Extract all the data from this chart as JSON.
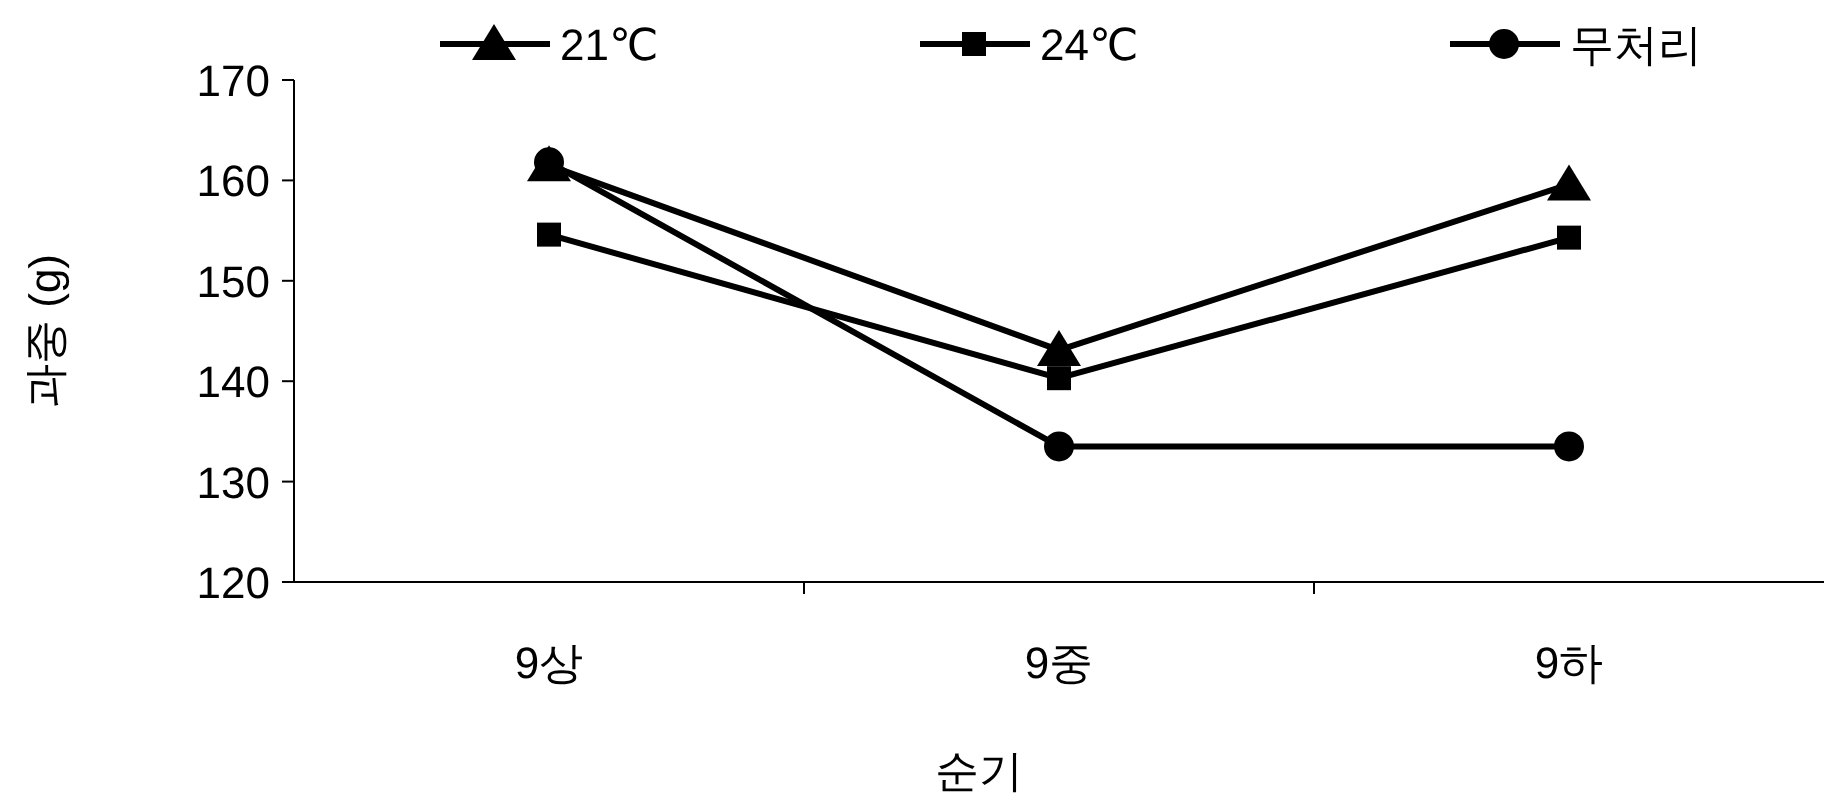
{
  "chart_data": {
    "type": "line",
    "xlabel": "순기",
    "ylabel": "과중 (g)",
    "categories": [
      "9상",
      "9중",
      "9하"
    ],
    "series": [
      {
        "name": "21℃",
        "color": "#000000",
        "marker": "triangle",
        "values": [
          161.5,
          143.1,
          159.6
        ]
      },
      {
        "name": "24℃",
        "color": "#000000",
        "marker": "square",
        "values": [
          154.6,
          140.3,
          154.3
        ]
      },
      {
        "name": "무처리",
        "color": "#000000",
        "marker": "circle",
        "values": [
          161.8,
          133.5,
          133.5
        ]
      }
    ],
    "ylim": [
      120,
      170
    ],
    "yticks": [
      120,
      130,
      140,
      150,
      160,
      170
    ],
    "grid": false,
    "legend": "top",
    "line_style": "solid"
  }
}
